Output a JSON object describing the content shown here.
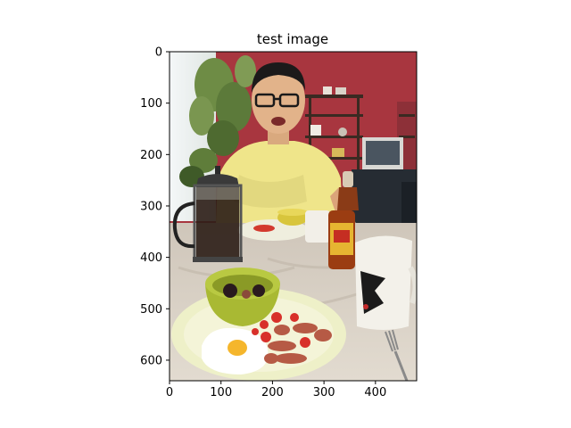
{
  "figure": {
    "title": "test image",
    "image_subject": "photo of a smiling man with glasses seated at a breakfast table with a french press, a plate with fried egg, sausage, tomatoes and a green bowl, a hot sauce bottle and mugs",
    "x_axis": {
      "ticks": [
        0,
        100,
        200,
        300,
        400
      ],
      "range": [
        0,
        480
      ]
    },
    "y_axis": {
      "ticks": [
        0,
        100,
        200,
        300,
        400,
        500,
        600
      ],
      "range": [
        0,
        640
      ],
      "inverted": true
    },
    "colors": {
      "wall": "#a8363f",
      "table": "#d8cfc3",
      "shirt": "#efe58a",
      "plate": "#eef0c8",
      "bowl": "#b4c43a",
      "tomato": "#d8302a",
      "sausage": "#b65a45"
    }
  }
}
